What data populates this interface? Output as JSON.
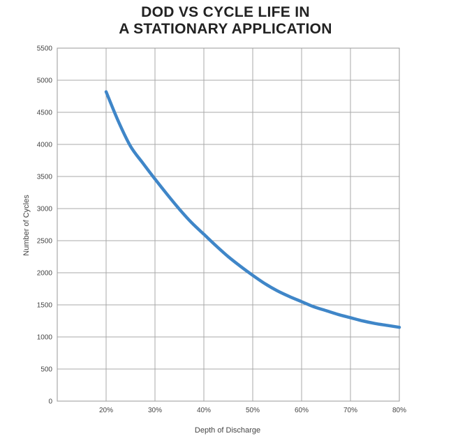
{
  "chart_data": {
    "type": "line",
    "title_lines": [
      "DOD VS CYCLE LIFE IN",
      "A STATIONARY APPLICATION"
    ],
    "xlabel": "Depth of Discharge",
    "ylabel": "Number of Cycles",
    "xlim": [
      10,
      80
    ],
    "ylim": [
      0,
      5500
    ],
    "x_ticks": [
      20,
      30,
      40,
      50,
      60,
      70,
      80
    ],
    "x_tick_labels": [
      "20%",
      "30%",
      "40%",
      "50%",
      "60%",
      "70%",
      "80%"
    ],
    "y_ticks": [
      0,
      500,
      1000,
      1500,
      2000,
      2500,
      3000,
      3500,
      4000,
      4500,
      5000,
      5500
    ],
    "y_tick_labels": [
      "0",
      "500",
      "1000",
      "1500",
      "2000",
      "2500",
      "3000",
      "3500",
      "4000",
      "4500",
      "5000",
      "5500"
    ],
    "grid": true,
    "line_color": "#3f86c8",
    "series": [
      {
        "x": [
          20,
          22.5,
          25,
          27.5,
          30,
          32.5,
          35,
          37.5,
          40,
          42.5,
          45,
          47.5,
          50,
          52.5,
          55,
          57.5,
          60,
          62.5,
          65,
          67.5,
          70,
          72.5,
          75,
          77.5,
          80
        ],
        "y": [
          4820,
          4360,
          3970,
          3710,
          3460,
          3220,
          2990,
          2780,
          2600,
          2420,
          2250,
          2100,
          1960,
          1830,
          1720,
          1630,
          1550,
          1470,
          1410,
          1350,
          1300,
          1250,
          1210,
          1180,
          1150
        ]
      }
    ]
  }
}
